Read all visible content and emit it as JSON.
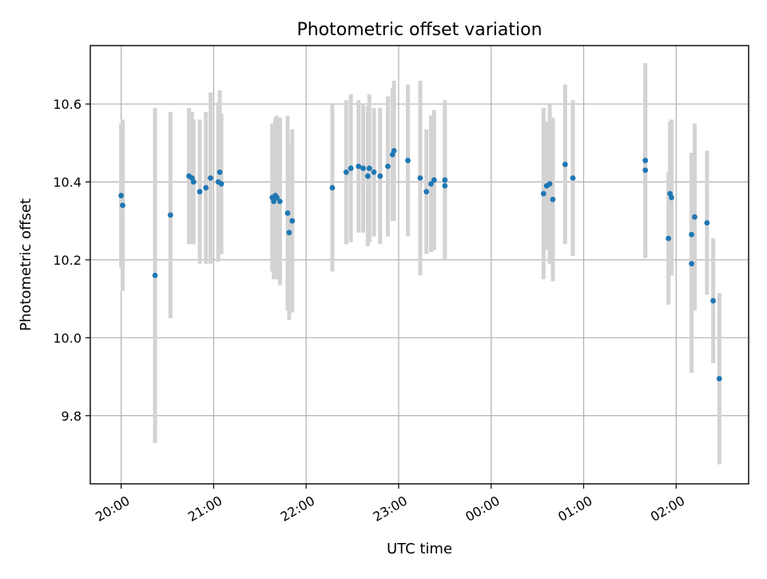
{
  "chart_data": {
    "type": "scatter",
    "title": "Photometric offset variation",
    "xlabel": "UTC time",
    "ylabel": "Photometric offset",
    "x_ticks": [
      "20:00",
      "21:00",
      "22:00",
      "23:00",
      "00:00",
      "01:00",
      "02:00"
    ],
    "y_ticks": [
      "9.8",
      "10.0",
      "10.2",
      "10.4",
      "10.6"
    ],
    "y_tick_values": [
      9.8,
      10.0,
      10.2,
      10.4,
      10.6
    ],
    "xlim": [
      "19:40",
      "26:47"
    ],
    "ylim": [
      9.625,
      10.75
    ],
    "grid": true,
    "x_tick_rotation_deg": 30,
    "colors": {
      "point": "#1f77b4",
      "errorbar": "#d3d3d3",
      "grid": "#b0b0b0"
    },
    "series": [
      {
        "x": [
          "20:00",
          "20:01",
          "20:22",
          "20:32",
          "20:44",
          "20:46",
          "20:47",
          "20:51",
          "20:55",
          "20:58",
          "21:03",
          "21:04",
          "21:05",
          "21:38",
          "21:39",
          "21:40",
          "21:41",
          "21:43",
          "21:48",
          "21:49",
          "21:51",
          "22:17",
          "22:26",
          "22:29",
          "22:34",
          "22:37",
          "22:40",
          "22:41",
          "22:44",
          "22:48",
          "22:53",
          "22:56",
          "22:57",
          "23:06",
          "23:14",
          "23:18",
          "23:21",
          "23:23",
          "23:30",
          "23:30",
          "00:34",
          "00:36",
          "00:38",
          "00:40",
          "00:48",
          "00:53",
          "01:40",
          "01:40",
          "01:55",
          "01:56",
          "01:57",
          "02:10",
          "02:10",
          "02:12",
          "02:20",
          "02:24",
          "02:28"
        ],
        "y": [
          10.365,
          10.34,
          10.16,
          10.315,
          10.415,
          10.41,
          10.4,
          10.375,
          10.385,
          10.41,
          10.4,
          10.425,
          10.395,
          10.36,
          10.35,
          10.365,
          10.36,
          10.35,
          10.32,
          10.27,
          10.3,
          10.385,
          10.425,
          10.435,
          10.44,
          10.435,
          10.415,
          10.435,
          10.425,
          10.415,
          10.44,
          10.47,
          10.48,
          10.455,
          10.41,
          10.375,
          10.395,
          10.405,
          10.405,
          10.39,
          10.37,
          10.39,
          10.395,
          10.355,
          10.445,
          10.41,
          10.455,
          10.43,
          10.255,
          10.37,
          10.36,
          10.265,
          10.19,
          10.31,
          10.295,
          10.095,
          9.895
        ],
        "yerr": [
          0.185,
          0.22,
          0.43,
          0.265,
          0.175,
          0.17,
          0.16,
          0.185,
          0.195,
          0.22,
          0.205,
          0.21,
          0.18,
          0.19,
          0.2,
          0.2,
          0.21,
          0.215,
          0.25,
          0.225,
          0.235,
          0.215,
          0.185,
          0.19,
          0.17,
          0.165,
          0.18,
          0.19,
          0.165,
          0.175,
          0.18,
          0.17,
          0.18,
          0.195,
          0.25,
          0.16,
          0.175,
          0.18,
          0.205,
          0.18,
          0.22,
          0.165,
          0.205,
          0.21,
          0.205,
          0.2,
          0.25,
          0.225,
          0.17,
          0.185,
          0.2,
          0.21,
          0.28,
          0.24,
          0.185,
          0.16,
          0.22
        ]
      }
    ]
  }
}
